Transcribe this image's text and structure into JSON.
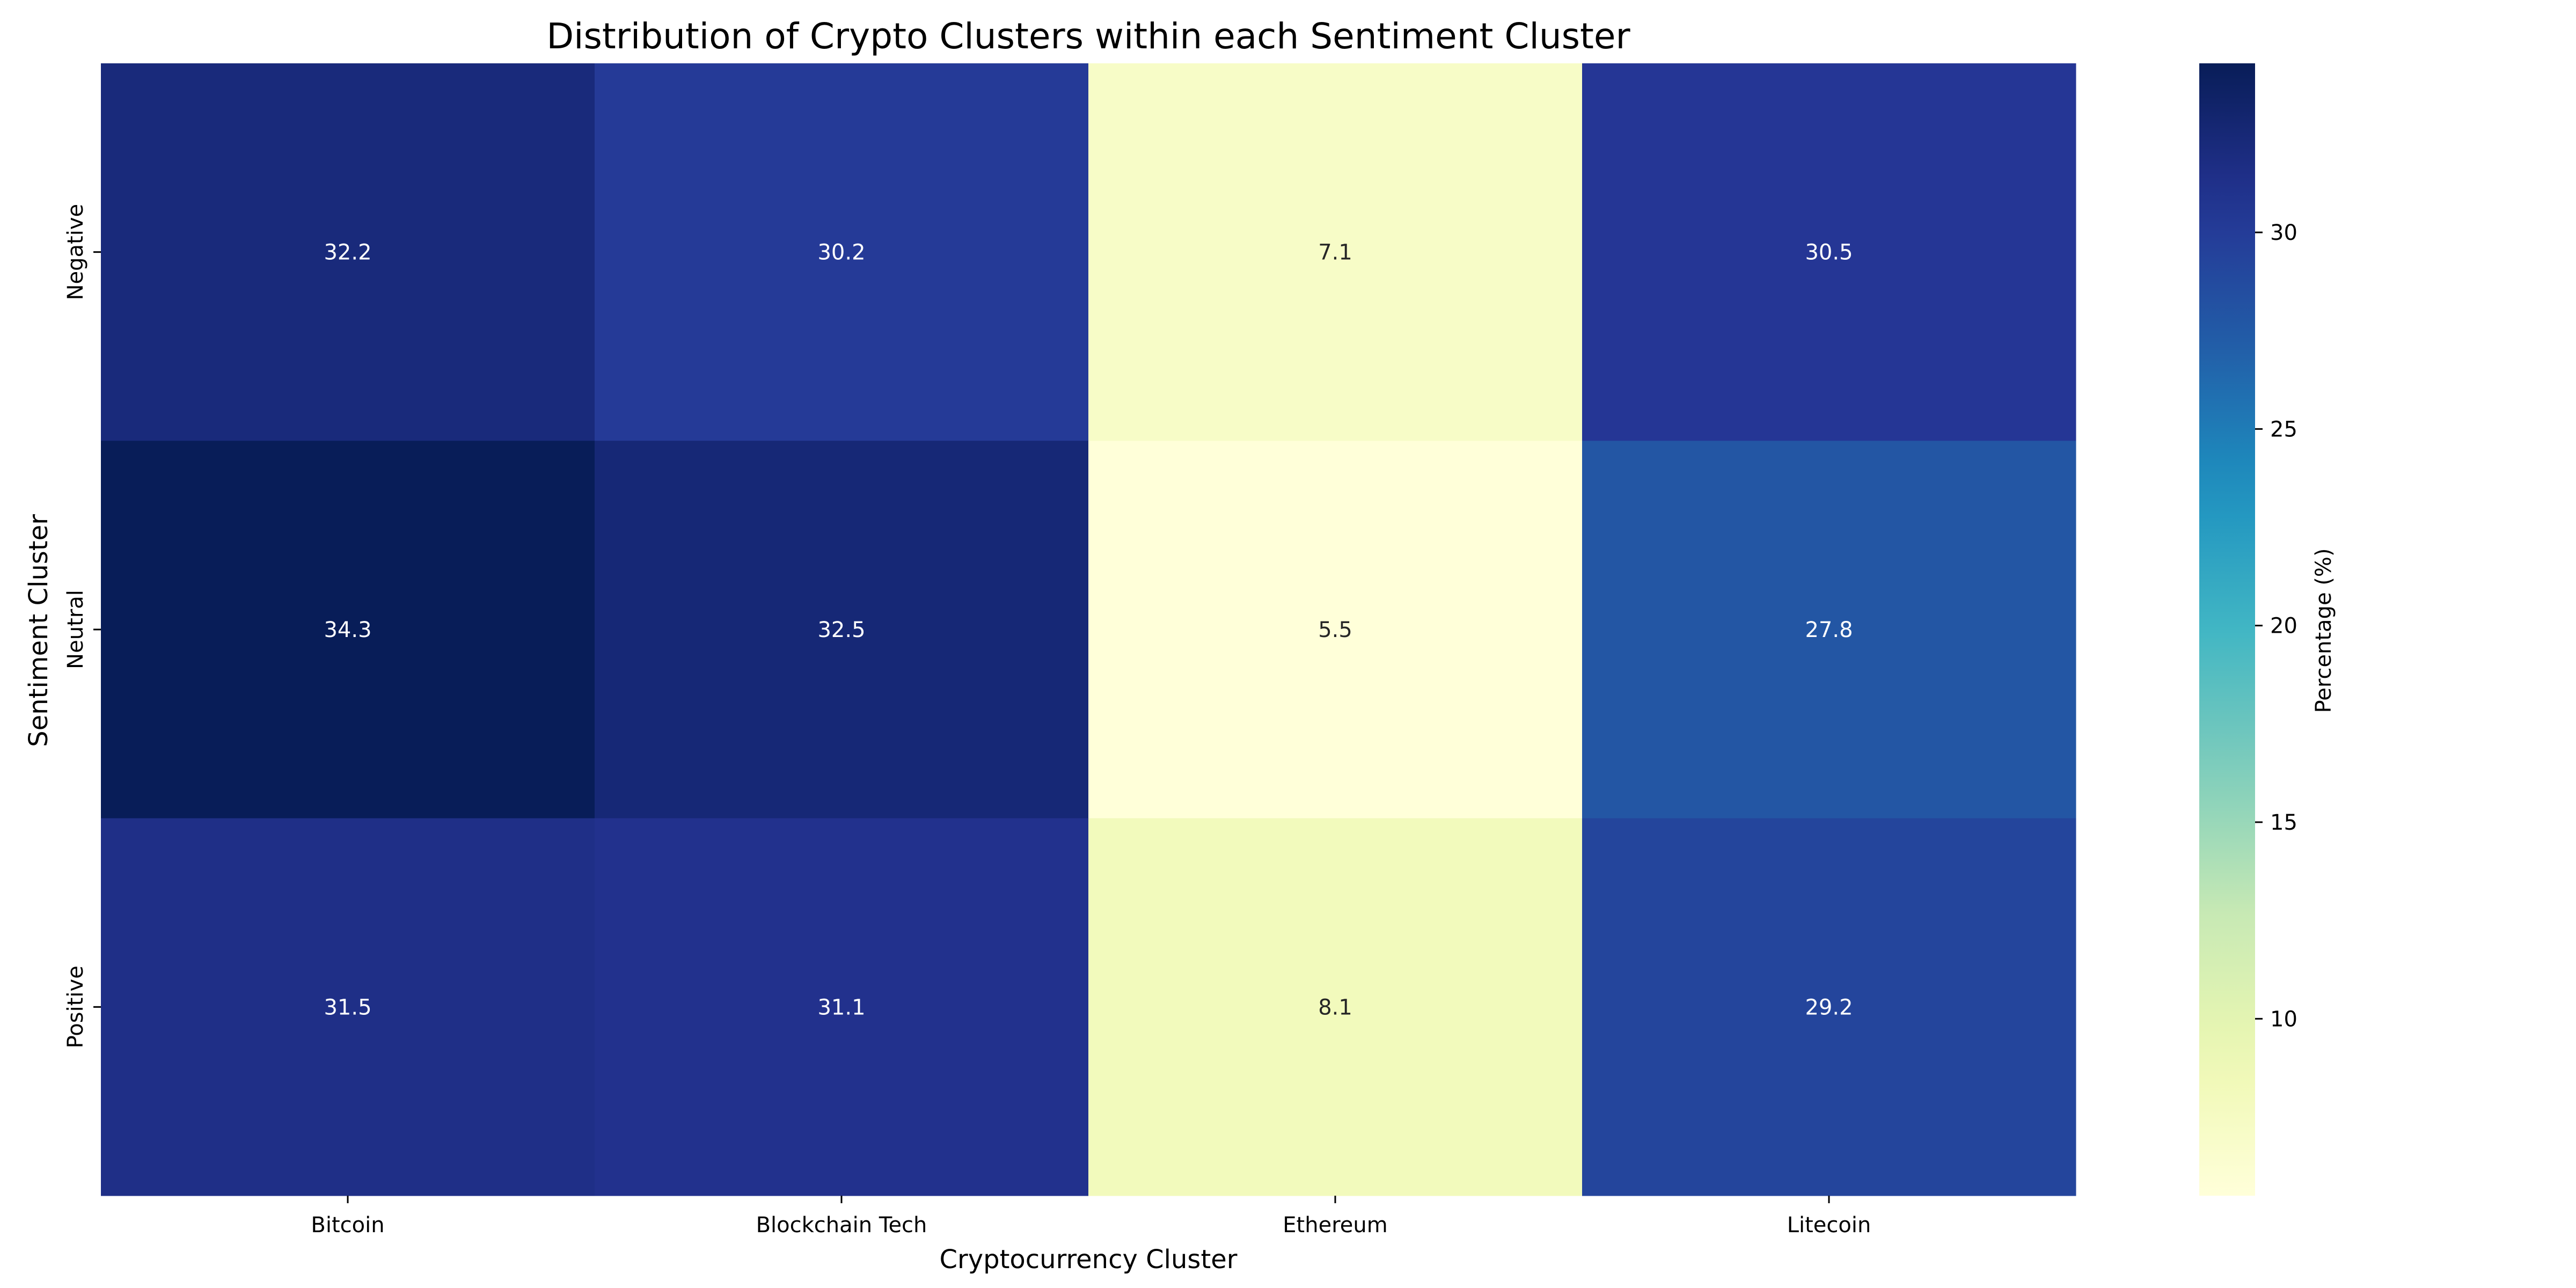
{
  "chart_data": {
    "type": "heatmap",
    "title": "Distribution of Crypto Clusters within each Sentiment Cluster",
    "xlabel": "Cryptocurrency Cluster",
    "ylabel": "Sentiment Cluster",
    "x_categories": [
      "Bitcoin",
      "Blockchain Tech",
      "Ethereum",
      "Litecoin"
    ],
    "y_categories": [
      "Negative",
      "Neutral",
      "Positive"
    ],
    "values": [
      [
        32.2,
        30.2,
        7.1,
        30.5
      ],
      [
        34.3,
        32.5,
        5.5,
        27.8
      ],
      [
        31.5,
        31.1,
        8.1,
        29.2
      ]
    ],
    "value_labels": [
      [
        "32.2",
        "30.2",
        "7.1",
        "30.5"
      ],
      [
        "34.3",
        "32.5",
        "5.5",
        "27.8"
      ],
      [
        "31.5",
        "31.1",
        "8.1",
        "29.2"
      ]
    ],
    "colorbar": {
      "label": "Percentage (%)",
      "colormap": "YlGnBu",
      "range": [
        5.5,
        34.3
      ],
      "ticks": [
        10,
        15,
        20,
        25,
        30
      ],
      "tick_labels": [
        "10",
        "15",
        "20",
        "25",
        "30"
      ]
    },
    "grid": false
  }
}
